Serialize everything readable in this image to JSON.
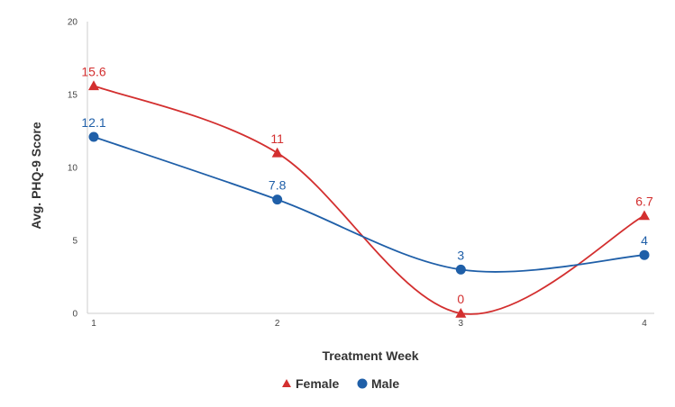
{
  "chart_data": {
    "type": "line",
    "title": "",
    "xlabel": "Treatment Week",
    "ylabel": "Avg. PHQ-9 Score",
    "categories": [
      "1",
      "2",
      "3",
      "4"
    ],
    "ylim": [
      0,
      20
    ],
    "yticks": [
      "0",
      "5",
      "10",
      "15",
      "20"
    ],
    "grid": false,
    "legend_position": "bottom",
    "smooth": true,
    "series": [
      {
        "name": "Female",
        "values": [
          15.6,
          11,
          0,
          6.7
        ],
        "labels": [
          "15.6",
          "11",
          "0",
          "6.7"
        ],
        "color": "#d32f2f",
        "marker": "triangle"
      },
      {
        "name": "Male",
        "values": [
          12.1,
          7.8,
          3,
          4
        ],
        "labels": [
          "12.1",
          "7.8",
          "3",
          "4"
        ],
        "color": "#1f5fa8",
        "marker": "circle"
      }
    ]
  }
}
